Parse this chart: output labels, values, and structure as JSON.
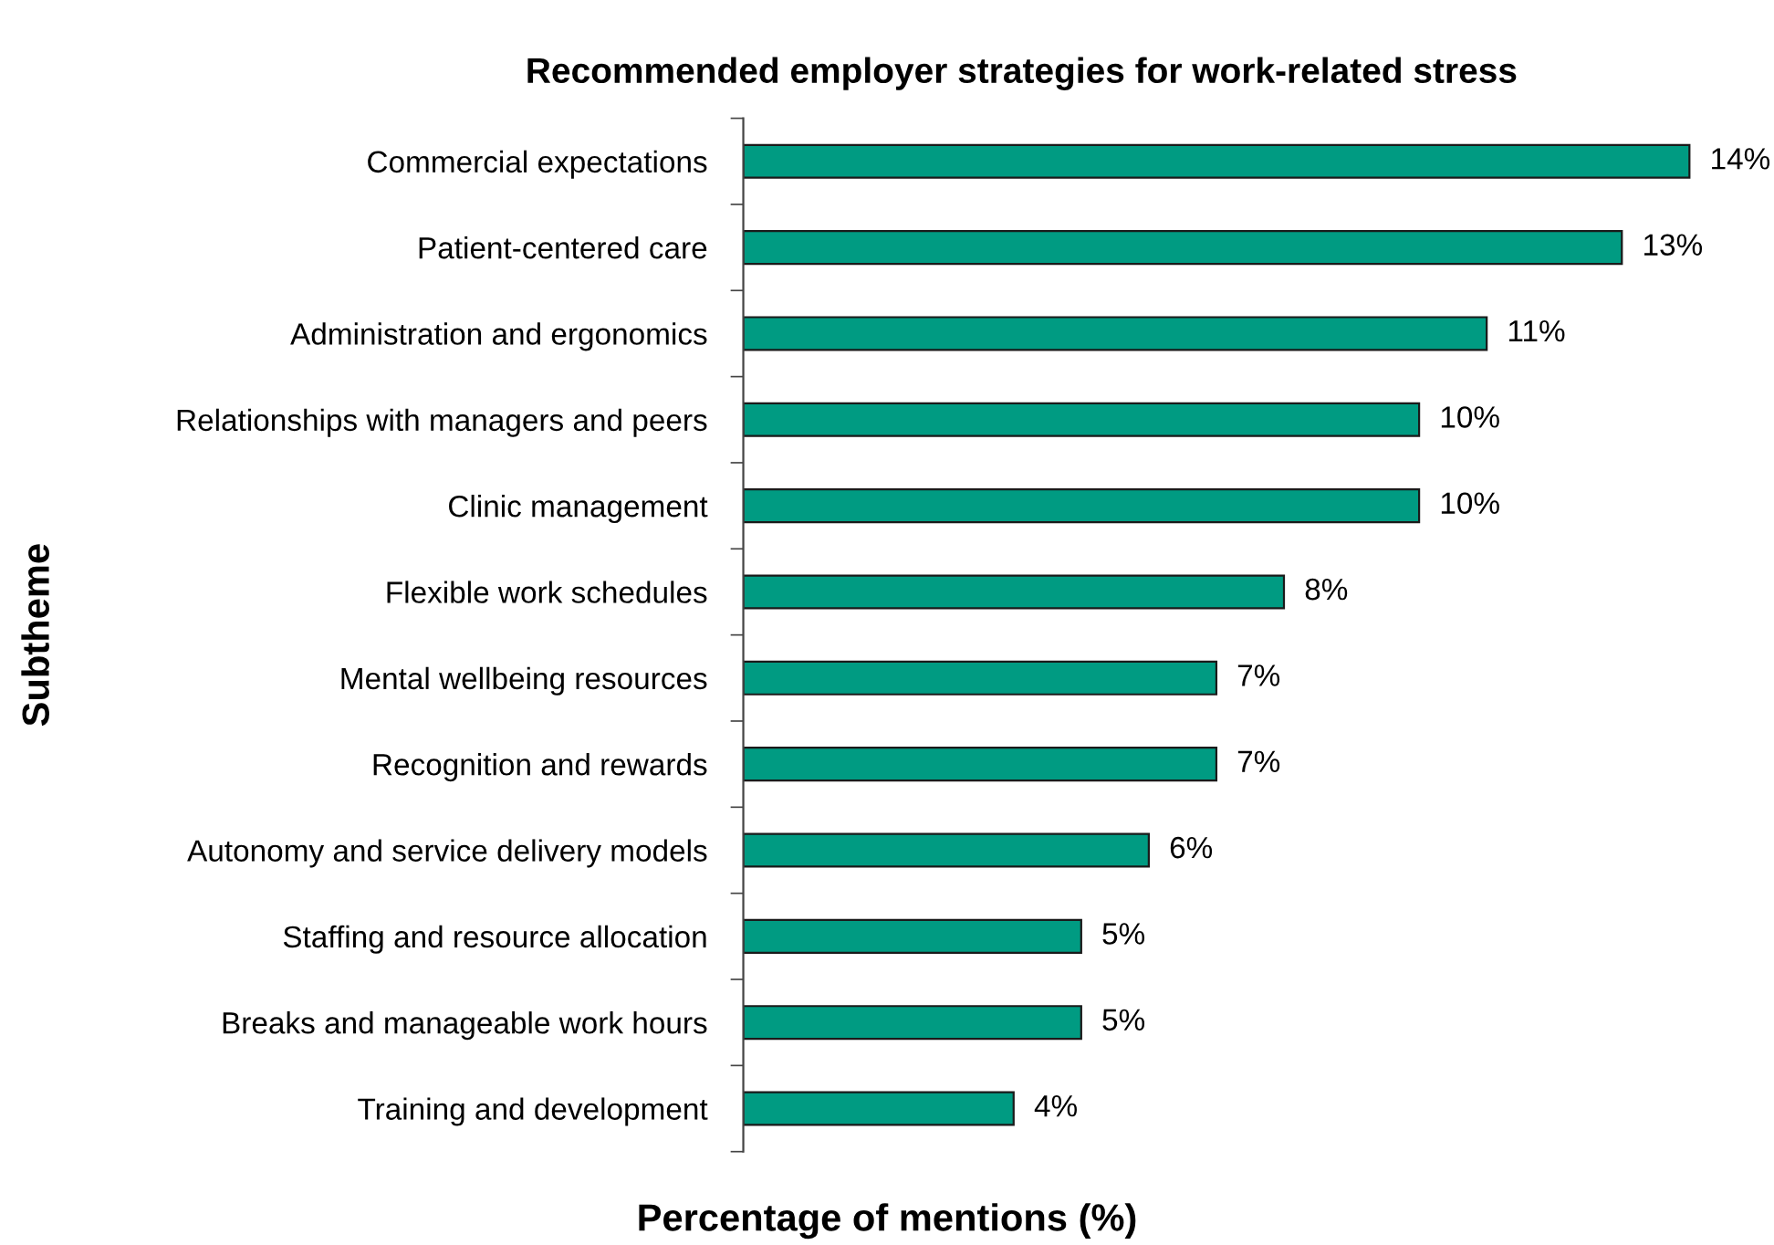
{
  "chart_data": {
    "type": "bar",
    "orientation": "horizontal",
    "title": "Recommended employer strategies for work-related stress",
    "xlabel": "Percentage of mentions (%)",
    "ylabel": "Subtheme",
    "categories": [
      "Commercial expectations",
      "Patient-centered care",
      "Administration and ergonomics",
      "Relationships with managers and peers",
      "Clinic management",
      "Flexible work schedules",
      "Mental wellbeing resources",
      "Recognition and rewards",
      "Autonomy and service delivery models",
      "Staffing and resource allocation",
      "Breaks and manageable work hours",
      "Training and development"
    ],
    "values": [
      14,
      13,
      11,
      10,
      10,
      8,
      7,
      7,
      6,
      5,
      5,
      4
    ],
    "value_labels": [
      "14%",
      "13%",
      "11%",
      "10%",
      "10%",
      "8%",
      "7%",
      "7%",
      "6%",
      "5%",
      "5%",
      "4%"
    ],
    "color": "#009b82",
    "tick_labels": "y"
  }
}
